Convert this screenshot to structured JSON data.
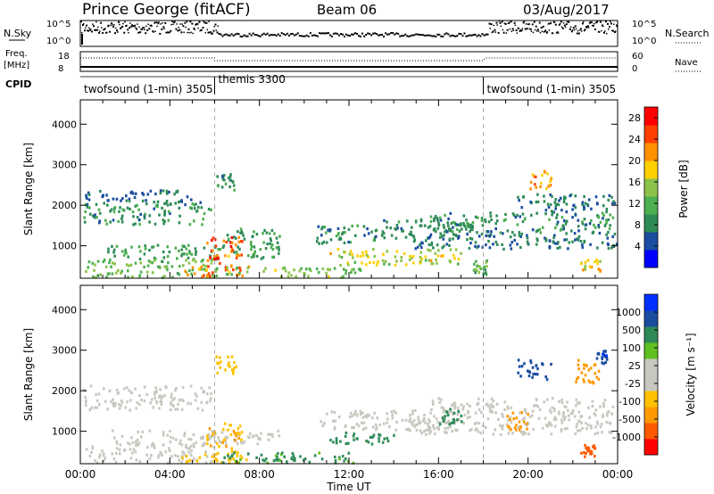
{
  "header": {
    "station": "Prince George (fitACF)",
    "beam": "Beam 06",
    "date": "03/Aug/2017"
  },
  "labels": {
    "nsky": "N.Sky",
    "nsearch": "N.Search",
    "freq": "Freq.",
    "freq_unit": "[MHz]",
    "nave": "Nave",
    "cpid": "CPID"
  },
  "cpid_segments": [
    {
      "name": "twofsound (1-min) 3505",
      "start_h": 0,
      "end_h": 6
    },
    {
      "name": "themis 3300",
      "start_h": 6,
      "end_h": 18
    },
    {
      "name": "twofsound (1-min) 3505",
      "start_h": 18,
      "end_h": 24
    }
  ],
  "nsky_axis": {
    "left_ticks": [
      "10^5",
      "10^0"
    ],
    "right_ticks": [
      "10^5",
      "10^0"
    ]
  },
  "freq_axis": {
    "left_ticks": [
      "18",
      "8"
    ],
    "right_ticks": [
      "60",
      "0"
    ]
  },
  "colors": {
    "power": [
      "#0000ff",
      "#1a4ca0",
      "#2e8b57",
      "#4caf50",
      "#8bc34a",
      "#ffd000",
      "#ff9000",
      "#ff4000",
      "#ff0000"
    ],
    "velocity": [
      "#ff0000",
      "#ff5a00",
      "#ff9a00",
      "#ffc000",
      "#c8c8c0",
      "#c8c8c0",
      "#60c020",
      "#2e8b57",
      "#1a4ca0",
      "#0030ff"
    ],
    "ground": "#c8c8c0"
  },
  "chart_data": [
    {
      "type": "heatmap",
      "panel": "power",
      "ylabel": "Slant Range [km]",
      "xlabel": "Time UT",
      "yticks": [
        "1000",
        "2000",
        "3000",
        "4000"
      ],
      "ylim": [
        200,
        4600
      ],
      "x_ticks": [
        "00:00",
        "04:00",
        "08:00",
        "12:00",
        "16:00",
        "20:00",
        "00:00"
      ],
      "xlim_hours": [
        0,
        24
      ],
      "colorbar": {
        "label": "Power [dB]",
        "ticks": [
          "4",
          "8",
          "12",
          "16",
          "20",
          "24",
          "28"
        ],
        "range": [
          0,
          30
        ]
      },
      "regions": [
        {
          "t0": 0.1,
          "t1": 5.8,
          "r0": 1550,
          "r1": 2150,
          "v": 9
        },
        {
          "t0": 0.2,
          "t1": 5.2,
          "r0": 2150,
          "r1": 2400,
          "v": 6
        },
        {
          "t0": 1.2,
          "t1": 9.0,
          "r0": 700,
          "r1": 1050,
          "v": 10
        },
        {
          "t0": 0.2,
          "t1": 6.0,
          "r0": 250,
          "r1": 700,
          "v": 13
        },
        {
          "t0": 5.6,
          "t1": 7.2,
          "r0": 600,
          "r1": 1250,
          "v": 25
        },
        {
          "t0": 4.5,
          "t1": 7.6,
          "r0": 250,
          "r1": 550,
          "v": 22
        },
        {
          "t0": 6.0,
          "t1": 12.5,
          "r0": 250,
          "r1": 500,
          "v": 14
        },
        {
          "t0": 6.5,
          "t1": 9.0,
          "r0": 1050,
          "r1": 1450,
          "v": 9
        },
        {
          "t0": 10.5,
          "t1": 13.5,
          "r0": 1050,
          "r1": 1550,
          "v": 9
        },
        {
          "t0": 11.0,
          "t1": 17.0,
          "r0": 550,
          "r1": 950,
          "v": 17
        },
        {
          "t0": 13.5,
          "t1": 17.5,
          "r0": 1200,
          "r1": 1700,
          "v": 8
        },
        {
          "t0": 14.5,
          "t1": 24.0,
          "r0": 950,
          "r1": 1350,
          "v": 7
        },
        {
          "t0": 15.5,
          "t1": 23.8,
          "r0": 1350,
          "r1": 1850,
          "v": 9
        },
        {
          "t0": 19.5,
          "t1": 24.0,
          "r0": 1850,
          "r1": 2300,
          "v": 7
        },
        {
          "t0": 20.0,
          "t1": 21.0,
          "r0": 2400,
          "r1": 2900,
          "v": 22
        },
        {
          "t0": 17.5,
          "t1": 18.2,
          "r0": 300,
          "r1": 700,
          "v": 12
        },
        {
          "t0": 22.3,
          "t1": 23.2,
          "r0": 400,
          "r1": 700,
          "v": 19
        },
        {
          "t0": 6.0,
          "t1": 7.0,
          "r0": 2400,
          "r1": 2900,
          "v": 8
        }
      ]
    },
    {
      "type": "heatmap",
      "panel": "velocity",
      "ylabel": "Slant Range [km]",
      "xlabel": "Time UT",
      "yticks": [
        "1000",
        "2000",
        "3000",
        "4000"
      ],
      "ylim": [
        200,
        4600
      ],
      "x_ticks": [
        "00:00",
        "04:00",
        "08:00",
        "12:00",
        "16:00",
        "20:00",
        "00:00"
      ],
      "xlim_hours": [
        0,
        24
      ],
      "colorbar": {
        "label": "Velocity [m s⁻¹]",
        "ticks": [
          "1000",
          "500",
          "100",
          "25",
          "-25",
          "-100",
          "-500",
          "-1000"
        ],
        "range": [
          -1200,
          1200
        ]
      },
      "regions": [
        {
          "t0": 0.1,
          "t1": 5.8,
          "r0": 1550,
          "r1": 2150,
          "v": 0
        },
        {
          "t0": 1.2,
          "t1": 9.0,
          "r0": 700,
          "r1": 1050,
          "v": 0
        },
        {
          "t0": 0.2,
          "t1": 6.0,
          "r0": 250,
          "r1": 700,
          "v": 0
        },
        {
          "t0": 5.6,
          "t1": 7.2,
          "r0": 600,
          "r1": 1250,
          "v": -90
        },
        {
          "t0": 4.5,
          "t1": 7.6,
          "r0": 250,
          "r1": 550,
          "v": -60
        },
        {
          "t0": 6.0,
          "t1": 12.5,
          "r0": 250,
          "r1": 500,
          "v": 110
        },
        {
          "t0": 11.0,
          "t1": 14.0,
          "r0": 700,
          "r1": 1000,
          "v": 120
        },
        {
          "t0": 10.5,
          "t1": 17.0,
          "r0": 1050,
          "r1": 1550,
          "v": 0
        },
        {
          "t0": 14.5,
          "t1": 24.0,
          "r0": 950,
          "r1": 1350,
          "v": 0
        },
        {
          "t0": 15.5,
          "t1": 23.8,
          "r0": 1350,
          "r1": 1850,
          "v": 0
        },
        {
          "t0": 16.0,
          "t1": 17.0,
          "r0": 1200,
          "r1": 1600,
          "v": 300
        },
        {
          "t0": 19.5,
          "t1": 21.0,
          "r0": 2300,
          "r1": 2800,
          "v": 700
        },
        {
          "t0": 22.0,
          "t1": 23.3,
          "r0": 2200,
          "r1": 2800,
          "v": -150
        },
        {
          "t0": 23.0,
          "t1": 23.5,
          "r0": 2700,
          "r1": 3100,
          "v": 900
        },
        {
          "t0": 6.0,
          "t1": 7.0,
          "r0": 2400,
          "r1": 2900,
          "v": -80
        },
        {
          "t0": 22.3,
          "t1": 23.0,
          "r0": 400,
          "r1": 700,
          "v": -600
        },
        {
          "t0": 19.0,
          "t1": 20.0,
          "r0": 1000,
          "r1": 1500,
          "v": -120
        }
      ]
    }
  ]
}
